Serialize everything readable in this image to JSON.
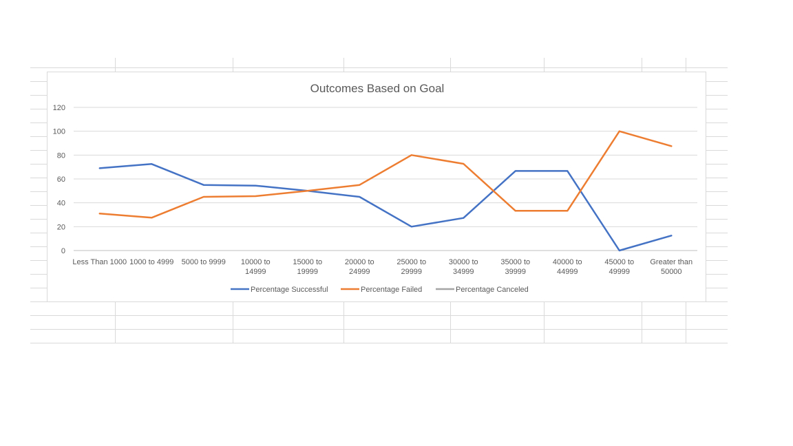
{
  "chart_data": {
    "type": "line",
    "title": "Outcomes Based on Goal",
    "categories": [
      [
        "Less Than 1000"
      ],
      [
        "1000 to 4999"
      ],
      [
        "5000 to 9999"
      ],
      [
        "10000 to",
        "14999"
      ],
      [
        "15000 to",
        "19999"
      ],
      [
        "20000 to",
        "24999"
      ],
      [
        "25000 to",
        "29999"
      ],
      [
        "30000 to",
        "34999"
      ],
      [
        "35000 to",
        "39999"
      ],
      [
        "40000 to",
        "44999"
      ],
      [
        "45000 to",
        "49999"
      ],
      [
        "Greater than",
        "50000"
      ]
    ],
    "series": [
      {
        "name": "Percentage Successful",
        "color": "#4472c4",
        "values": [
          69,
          72.5,
          55,
          54.4,
          50,
          45,
          20,
          27.3,
          66.7,
          66.7,
          0,
          12.5
        ]
      },
      {
        "name": "Percentage Failed",
        "color": "#ed7d31",
        "values": [
          31,
          27.5,
          45,
          45.6,
          50,
          55,
          80,
          72.7,
          33.3,
          33.3,
          100,
          87.5
        ]
      },
      {
        "name": "Percentage Canceled",
        "color": "#a5a5a5",
        "values": [
          0,
          0,
          0,
          0,
          0,
          0,
          0,
          0,
          0,
          0,
          0,
          0
        ]
      }
    ],
    "ylim": [
      0,
      120
    ],
    "yticks": [
      0,
      20,
      40,
      60,
      80,
      100,
      120
    ],
    "grid": true,
    "legend_position": "bottom"
  }
}
